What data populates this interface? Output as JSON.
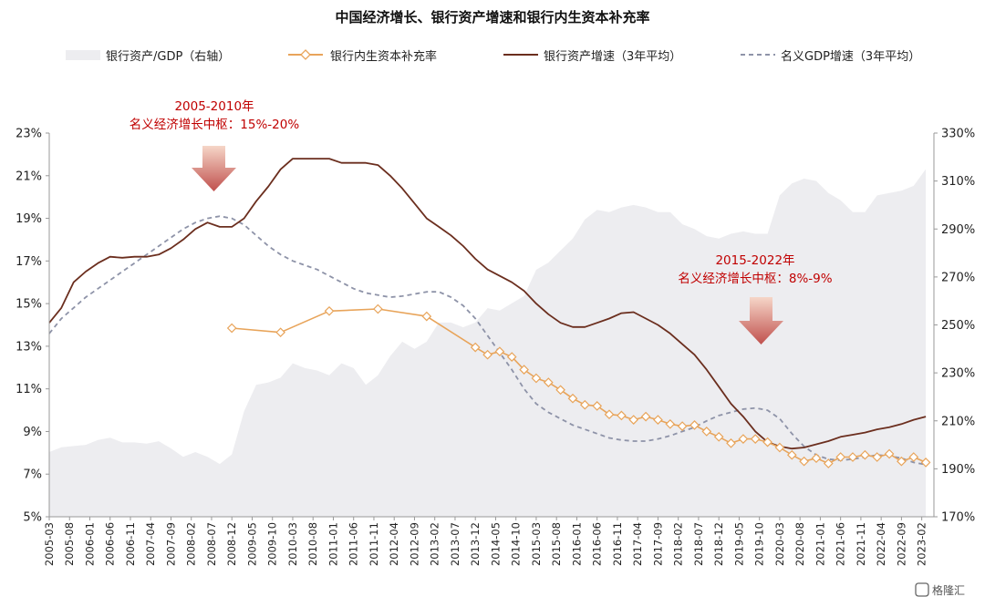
{
  "title": "中国经济增长、银行资产增速和银行内生资本补充率",
  "legend": [
    {
      "key": "area",
      "label": "银行资产/GDP（右轴）"
    },
    {
      "key": "capital",
      "label": "银行内生资本补充率"
    },
    {
      "key": "bank",
      "label": "银行资产增速（3年平均）"
    },
    {
      "key": "gdp",
      "label": "名义GDP增速（3年平均）"
    }
  ],
  "annotations": [
    {
      "lines": [
        "2005-2010年",
        "名义经济增长中枢：15%-20%"
      ]
    },
    {
      "lines": [
        "2015-2022年",
        "名义经济增长中枢：8%-9%"
      ]
    }
  ],
  "watermark": "格隆汇",
  "colors": {
    "area": "#ededf0",
    "capital": "#e8a45a",
    "bank": "#6b2e1e",
    "gdp": "#8e93a8",
    "arrow_top": "#f3c9b6",
    "arrow_bottom": "#c0504d",
    "annotation": "#c00000"
  },
  "chart_data": {
    "type": "line",
    "x_range": [
      "2005-03",
      "2023-05"
    ],
    "x_tick_labels": [
      "2005-03",
      "2005-08",
      "2006-01",
      "2006-06",
      "2006-11",
      "2007-04",
      "2007-09",
      "2008-02",
      "2008-07",
      "2008-12",
      "2009-05",
      "2009-10",
      "2010-03",
      "2010-08",
      "2011-01",
      "2011-06",
      "2011-11",
      "2012-04",
      "2012-09",
      "2013-02",
      "2013-07",
      "2013-12",
      "2014-05",
      "2014-10",
      "2015-03",
      "2015-08",
      "2016-01",
      "2016-06",
      "2016-11",
      "2017-04",
      "2017-09",
      "2018-02",
      "2018-07",
      "2018-12",
      "2019-05",
      "2019-10",
      "2020-03",
      "2020-08",
      "2021-01",
      "2021-06",
      "2021-11",
      "2022-04",
      "2022-09",
      "2023-02"
    ],
    "y_left": {
      "min": 5,
      "max": 23,
      "ticks": [
        "5%",
        "7%",
        "9%",
        "11%",
        "13%",
        "15%",
        "17%",
        "19%",
        "21%",
        "23%"
      ]
    },
    "y_right": {
      "min": 170,
      "max": 330,
      "ticks": [
        "170%",
        "190%",
        "210%",
        "230%",
        "250%",
        "270%",
        "290%",
        "310%",
        "330%"
      ]
    },
    "series": [
      {
        "name": "银行资产/GDP（右轴）",
        "type": "area",
        "axis": "right",
        "points": [
          [
            "2005-03",
            197
          ],
          [
            "2005-06",
            199
          ],
          [
            "2005-09",
            199.5
          ],
          [
            "2005-12",
            200
          ],
          [
            "2006-03",
            202
          ],
          [
            "2006-06",
            203
          ],
          [
            "2006-09",
            201
          ],
          [
            "2006-12",
            201
          ],
          [
            "2007-03",
            200.5
          ],
          [
            "2007-06",
            201.5
          ],
          [
            "2007-09",
            198.5
          ],
          [
            "2007-12",
            195
          ],
          [
            "2008-03",
            197
          ],
          [
            "2008-06",
            195
          ],
          [
            "2008-09",
            192
          ],
          [
            "2008-12",
            196
          ],
          [
            "2009-03",
            214
          ],
          [
            "2009-06",
            225
          ],
          [
            "2009-09",
            226
          ],
          [
            "2009-12",
            228
          ],
          [
            "2010-03",
            234
          ],
          [
            "2010-06",
            232
          ],
          [
            "2010-09",
            231
          ],
          [
            "2010-12",
            229
          ],
          [
            "2011-03",
            234
          ],
          [
            "2011-06",
            232
          ],
          [
            "2011-09",
            225
          ],
          [
            "2011-12",
            229
          ],
          [
            "2012-03",
            237
          ],
          [
            "2012-06",
            243
          ],
          [
            "2012-09",
            240
          ],
          [
            "2012-12",
            243
          ],
          [
            "2013-03",
            251
          ],
          [
            "2013-06",
            251
          ],
          [
            "2013-09",
            249
          ],
          [
            "2013-12",
            251
          ],
          [
            "2014-03",
            257
          ],
          [
            "2014-06",
            256
          ],
          [
            "2014-09",
            259
          ],
          [
            "2014-12",
            262
          ],
          [
            "2015-03",
            273
          ],
          [
            "2015-06",
            276
          ],
          [
            "2015-09",
            281
          ],
          [
            "2015-12",
            286
          ],
          [
            "2016-03",
            294
          ],
          [
            "2016-06",
            298
          ],
          [
            "2016-09",
            297
          ],
          [
            "2016-12",
            299
          ],
          [
            "2017-03",
            300
          ],
          [
            "2017-06",
            299
          ],
          [
            "2017-09",
            297
          ],
          [
            "2017-12",
            297
          ],
          [
            "2018-03",
            292
          ],
          [
            "2018-06",
            290
          ],
          [
            "2018-09",
            287
          ],
          [
            "2018-12",
            286
          ],
          [
            "2019-03",
            288
          ],
          [
            "2019-06",
            289
          ],
          [
            "2019-09",
            288
          ],
          [
            "2019-12",
            288
          ],
          [
            "2020-03",
            304
          ],
          [
            "2020-06",
            309
          ],
          [
            "2020-09",
            311
          ],
          [
            "2020-12",
            310
          ],
          [
            "2021-03",
            305
          ],
          [
            "2021-06",
            302
          ],
          [
            "2021-09",
            297
          ],
          [
            "2021-12",
            297
          ],
          [
            "2022-03",
            304
          ],
          [
            "2022-06",
            305
          ],
          [
            "2022-09",
            306
          ],
          [
            "2022-12",
            308
          ],
          [
            "2023-03",
            315
          ]
        ]
      },
      {
        "name": "银行内生资本补充率",
        "type": "line",
        "axis": "left",
        "points": [
          [
            "2008-12",
            13.85
          ],
          [
            "2009-12",
            13.65
          ],
          [
            "2010-12",
            14.65
          ],
          [
            "2011-12",
            14.75
          ],
          [
            "2012-12",
            14.4
          ],
          [
            "2013-12",
            12.95
          ],
          [
            "2014-03",
            12.6
          ],
          [
            "2014-06",
            12.75
          ],
          [
            "2014-09",
            12.5
          ],
          [
            "2014-12",
            11.9
          ],
          [
            "2015-03",
            11.5
          ],
          [
            "2015-06",
            11.3
          ],
          [
            "2015-09",
            10.95
          ],
          [
            "2015-12",
            10.55
          ],
          [
            "2016-03",
            10.25
          ],
          [
            "2016-06",
            10.2
          ],
          [
            "2016-09",
            9.8
          ],
          [
            "2016-12",
            9.75
          ],
          [
            "2017-03",
            9.55
          ],
          [
            "2017-06",
            9.7
          ],
          [
            "2017-09",
            9.55
          ],
          [
            "2017-12",
            9.35
          ],
          [
            "2018-03",
            9.25
          ],
          [
            "2018-06",
            9.3
          ],
          [
            "2018-09",
            9.0
          ],
          [
            "2018-12",
            8.75
          ],
          [
            "2019-03",
            8.45
          ],
          [
            "2019-06",
            8.65
          ],
          [
            "2019-09",
            8.65
          ],
          [
            "2019-12",
            8.5
          ],
          [
            "2020-03",
            8.25
          ],
          [
            "2020-06",
            7.9
          ],
          [
            "2020-09",
            7.6
          ],
          [
            "2020-12",
            7.75
          ],
          [
            "2021-03",
            7.5
          ],
          [
            "2021-06",
            7.8
          ],
          [
            "2021-09",
            7.8
          ],
          [
            "2021-12",
            7.9
          ],
          [
            "2022-03",
            7.8
          ],
          [
            "2022-06",
            7.95
          ],
          [
            "2022-09",
            7.6
          ],
          [
            "2022-12",
            7.8
          ],
          [
            "2023-03",
            7.55
          ]
        ]
      },
      {
        "name": "银行资产增速（3年平均）",
        "type": "line",
        "axis": "left",
        "points": [
          [
            "2005-03",
            14.1
          ],
          [
            "2005-06",
            14.8
          ],
          [
            "2005-09",
            16.0
          ],
          [
            "2005-12",
            16.5
          ],
          [
            "2006-03",
            16.9
          ],
          [
            "2006-06",
            17.2
          ],
          [
            "2006-09",
            17.15
          ],
          [
            "2006-12",
            17.2
          ],
          [
            "2007-03",
            17.2
          ],
          [
            "2007-06",
            17.3
          ],
          [
            "2007-09",
            17.6
          ],
          [
            "2007-12",
            18.0
          ],
          [
            "2008-03",
            18.5
          ],
          [
            "2008-06",
            18.8
          ],
          [
            "2008-09",
            18.6
          ],
          [
            "2008-12",
            18.6
          ],
          [
            "2009-03",
            19.0
          ],
          [
            "2009-06",
            19.8
          ],
          [
            "2009-09",
            20.5
          ],
          [
            "2009-12",
            21.3
          ],
          [
            "2010-03",
            21.8
          ],
          [
            "2010-06",
            21.8
          ],
          [
            "2010-09",
            21.8
          ],
          [
            "2010-12",
            21.8
          ],
          [
            "2011-03",
            21.6
          ],
          [
            "2011-06",
            21.6
          ],
          [
            "2011-09",
            21.6
          ],
          [
            "2011-12",
            21.5
          ],
          [
            "2012-03",
            21.0
          ],
          [
            "2012-06",
            20.4
          ],
          [
            "2012-09",
            19.7
          ],
          [
            "2012-12",
            19.0
          ],
          [
            "2013-03",
            18.6
          ],
          [
            "2013-06",
            18.2
          ],
          [
            "2013-09",
            17.7
          ],
          [
            "2013-12",
            17.1
          ],
          [
            "2014-03",
            16.6
          ],
          [
            "2014-06",
            16.3
          ],
          [
            "2014-09",
            16.0
          ],
          [
            "2014-12",
            15.6
          ],
          [
            "2015-03",
            15.0
          ],
          [
            "2015-06",
            14.5
          ],
          [
            "2015-09",
            14.1
          ],
          [
            "2015-12",
            13.9
          ],
          [
            "2016-03",
            13.9
          ],
          [
            "2016-06",
            14.1
          ],
          [
            "2016-09",
            14.3
          ],
          [
            "2016-12",
            14.55
          ],
          [
            "2017-03",
            14.6
          ],
          [
            "2017-06",
            14.3
          ],
          [
            "2017-09",
            14.0
          ],
          [
            "2017-12",
            13.6
          ],
          [
            "2018-03",
            13.1
          ],
          [
            "2018-06",
            12.6
          ],
          [
            "2018-09",
            11.9
          ],
          [
            "2018-12",
            11.1
          ],
          [
            "2019-03",
            10.3
          ],
          [
            "2019-06",
            9.7
          ],
          [
            "2019-09",
            9.0
          ],
          [
            "2019-12",
            8.5
          ],
          [
            "2020-03",
            8.3
          ],
          [
            "2020-06",
            8.2
          ],
          [
            "2020-09",
            8.25
          ],
          [
            "2020-12",
            8.4
          ],
          [
            "2021-03",
            8.55
          ],
          [
            "2021-06",
            8.75
          ],
          [
            "2021-09",
            8.85
          ],
          [
            "2021-12",
            8.95
          ],
          [
            "2022-03",
            9.1
          ],
          [
            "2022-06",
            9.2
          ],
          [
            "2022-09",
            9.35
          ],
          [
            "2022-12",
            9.55
          ],
          [
            "2023-03",
            9.7
          ]
        ]
      },
      {
        "name": "名义GDP增速（3年平均）",
        "type": "line",
        "axis": "left",
        "dashed": true,
        "points": [
          [
            "2005-03",
            13.6
          ],
          [
            "2005-06",
            14.3
          ],
          [
            "2005-09",
            14.8
          ],
          [
            "2005-12",
            15.3
          ],
          [
            "2006-03",
            15.7
          ],
          [
            "2006-06",
            16.1
          ],
          [
            "2006-09",
            16.5
          ],
          [
            "2006-12",
            16.9
          ],
          [
            "2007-03",
            17.3
          ],
          [
            "2007-06",
            17.7
          ],
          [
            "2007-09",
            18.1
          ],
          [
            "2007-12",
            18.5
          ],
          [
            "2008-03",
            18.8
          ],
          [
            "2008-06",
            19.0
          ],
          [
            "2008-09",
            19.1
          ],
          [
            "2008-12",
            19.0
          ],
          [
            "2009-03",
            18.7
          ],
          [
            "2009-06",
            18.2
          ],
          [
            "2009-09",
            17.7
          ],
          [
            "2009-12",
            17.3
          ],
          [
            "2010-03",
            17.0
          ],
          [
            "2010-06",
            16.8
          ],
          [
            "2010-09",
            16.6
          ],
          [
            "2010-12",
            16.3
          ],
          [
            "2011-03",
            16.0
          ],
          [
            "2011-06",
            15.7
          ],
          [
            "2011-09",
            15.5
          ],
          [
            "2011-12",
            15.4
          ],
          [
            "2012-03",
            15.3
          ],
          [
            "2012-06",
            15.35
          ],
          [
            "2012-09",
            15.45
          ],
          [
            "2012-12",
            15.55
          ],
          [
            "2013-03",
            15.55
          ],
          [
            "2013-06",
            15.3
          ],
          [
            "2013-09",
            14.9
          ],
          [
            "2013-12",
            14.3
          ],
          [
            "2014-03",
            13.5
          ],
          [
            "2014-06",
            12.7
          ],
          [
            "2014-09",
            11.9
          ],
          [
            "2014-12",
            11.0
          ],
          [
            "2015-03",
            10.3
          ],
          [
            "2015-06",
            9.9
          ],
          [
            "2015-09",
            9.6
          ],
          [
            "2015-12",
            9.3
          ],
          [
            "2016-03",
            9.1
          ],
          [
            "2016-06",
            8.9
          ],
          [
            "2016-09",
            8.7
          ],
          [
            "2016-12",
            8.6
          ],
          [
            "2017-03",
            8.55
          ],
          [
            "2017-06",
            8.55
          ],
          [
            "2017-09",
            8.65
          ],
          [
            "2017-12",
            8.8
          ],
          [
            "2018-03",
            9.0
          ],
          [
            "2018-06",
            9.2
          ],
          [
            "2018-09",
            9.5
          ],
          [
            "2018-12",
            9.75
          ],
          [
            "2019-03",
            9.9
          ],
          [
            "2019-06",
            10.05
          ],
          [
            "2019-09",
            10.1
          ],
          [
            "2019-12",
            10.0
          ],
          [
            "2020-03",
            9.6
          ],
          [
            "2020-06",
            8.9
          ],
          [
            "2020-09",
            8.3
          ],
          [
            "2020-12",
            7.9
          ],
          [
            "2021-03",
            7.7
          ],
          [
            "2021-06",
            7.65
          ],
          [
            "2021-09",
            7.7
          ],
          [
            "2021-12",
            7.8
          ],
          [
            "2022-03",
            7.9
          ],
          [
            "2022-06",
            7.85
          ],
          [
            "2022-09",
            7.75
          ],
          [
            "2022-12",
            7.55
          ],
          [
            "2023-03",
            7.45
          ]
        ]
      }
    ]
  }
}
